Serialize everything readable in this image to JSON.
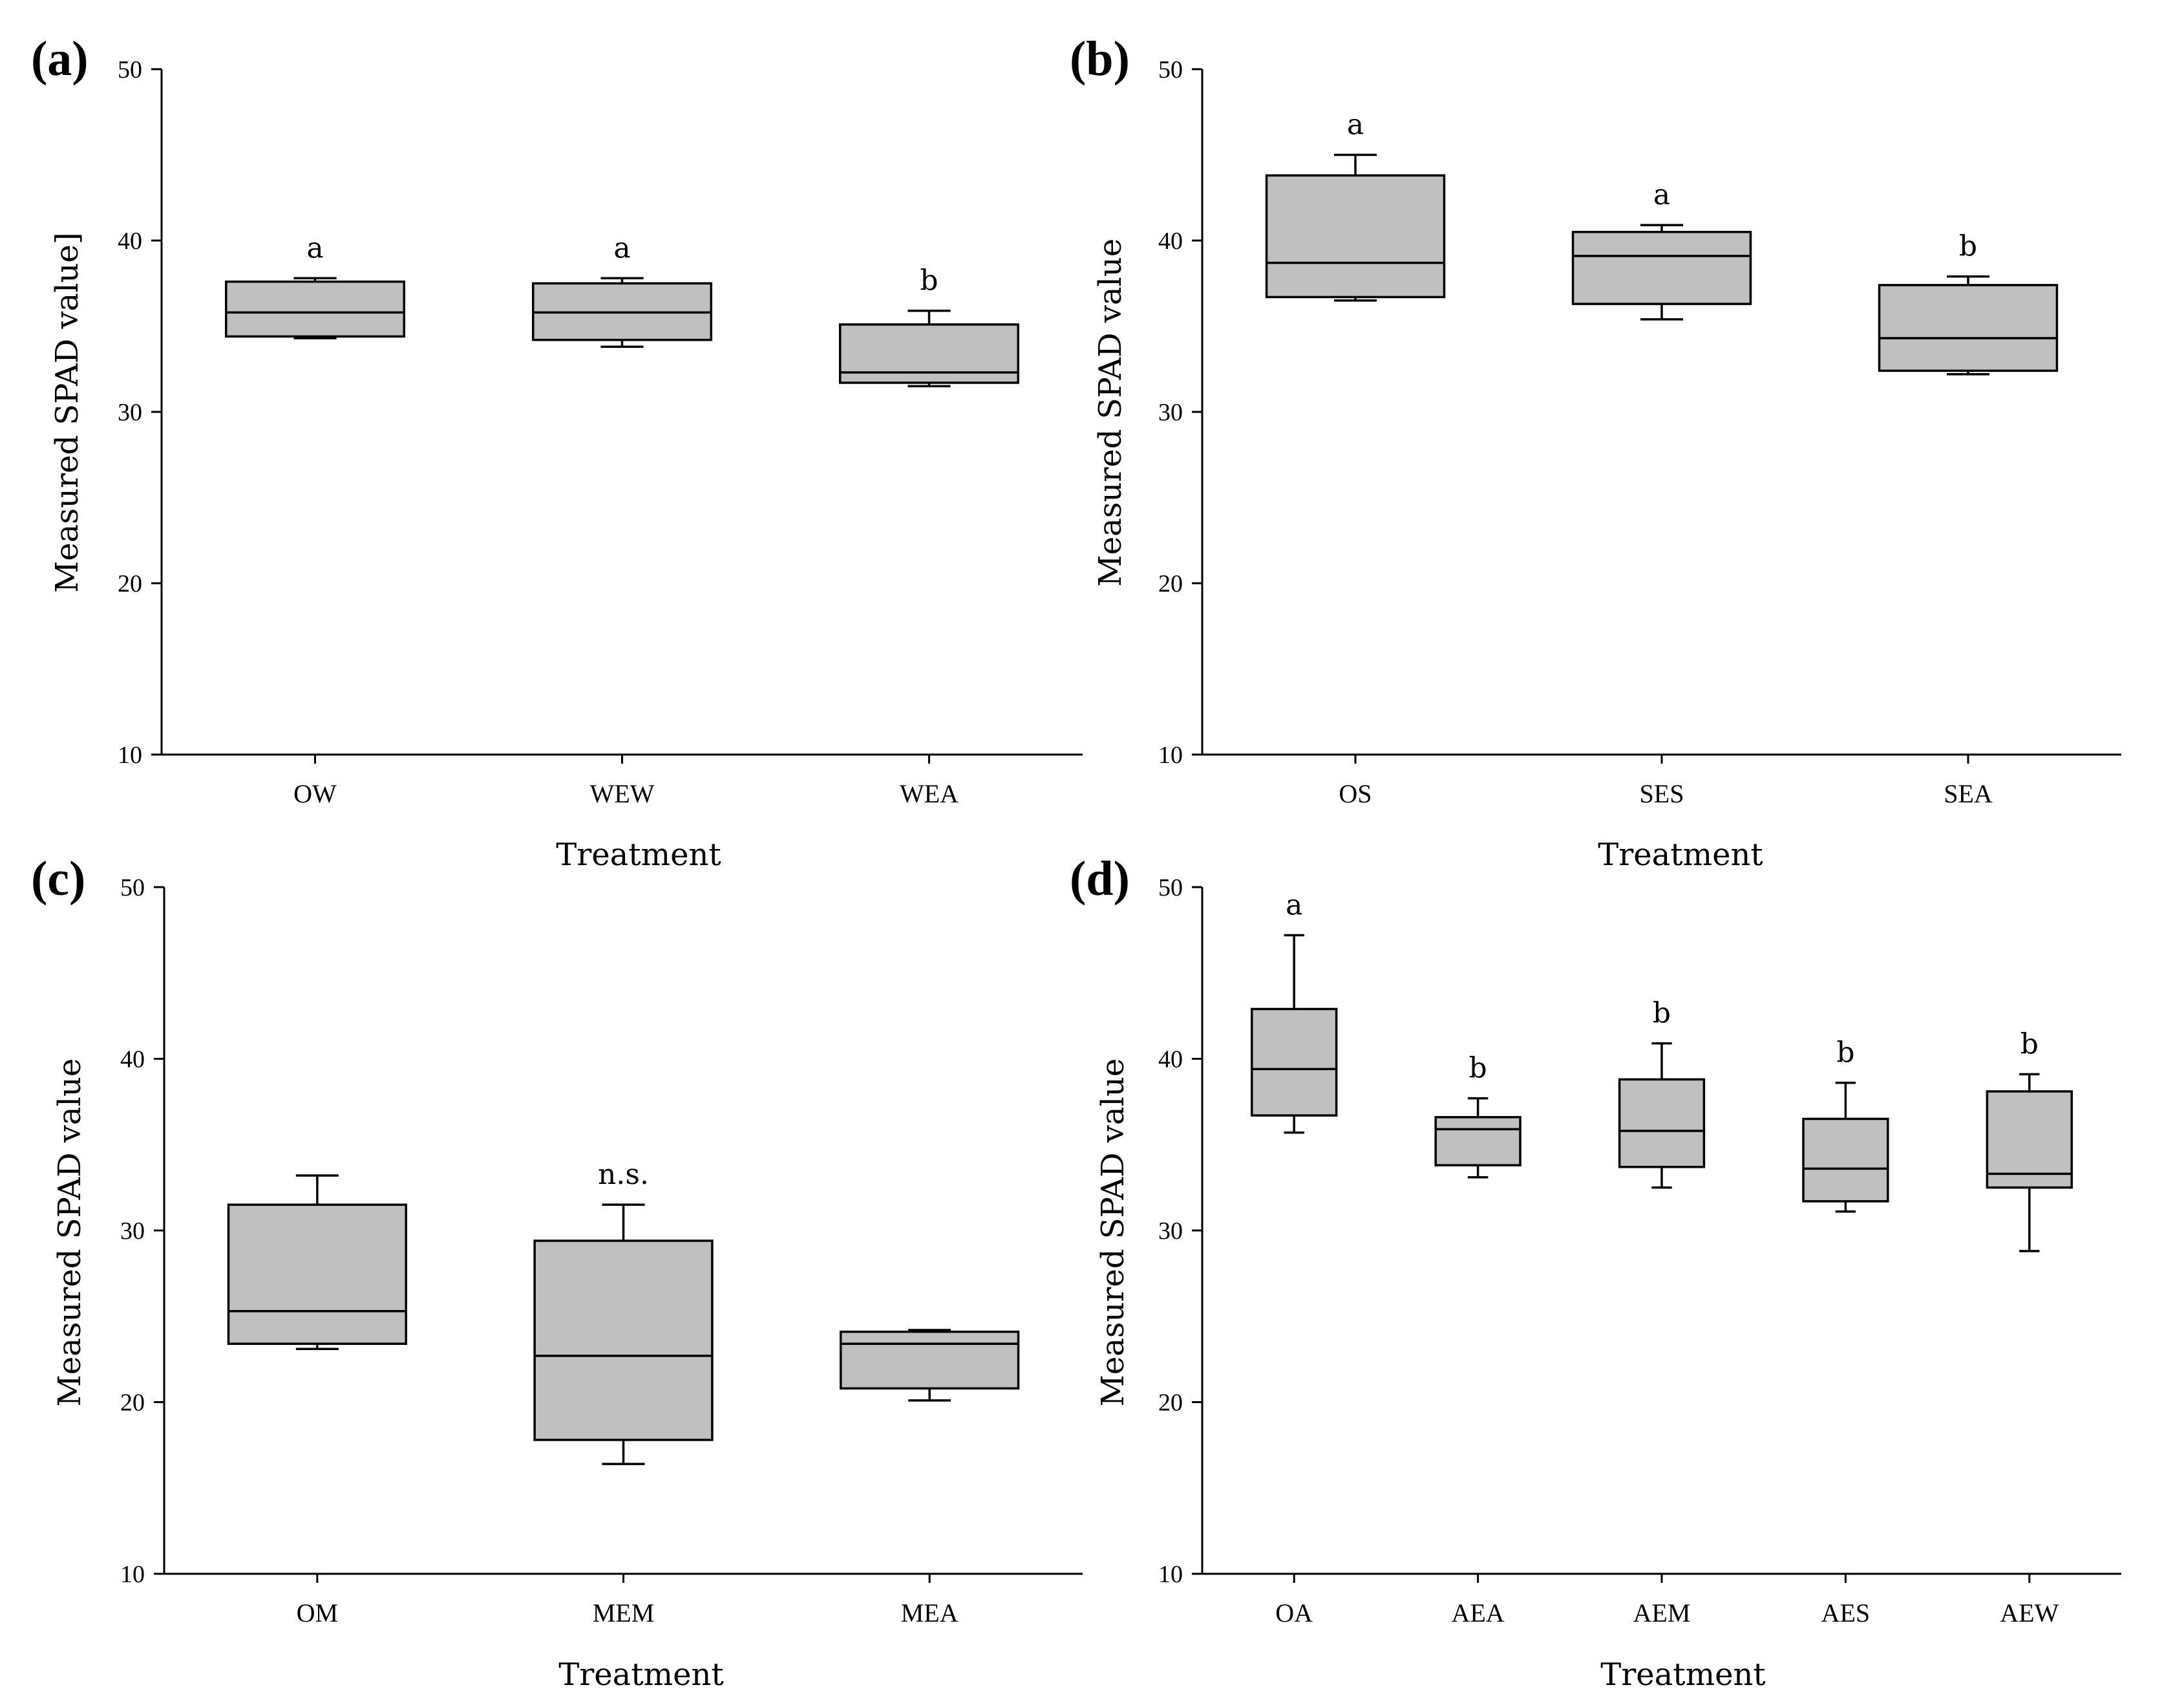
{
  "colors": {
    "box_fill": "#c0c0c0",
    "stroke": "#000000",
    "background": "#ffffff"
  },
  "chart_data": [
    {
      "type": "boxplot",
      "panel": "(a)",
      "xlabel": "Treatment",
      "ylabel": "Measured SPAD value]",
      "ylim": [
        10,
        50
      ],
      "yticks": [
        10,
        20,
        30,
        40,
        50
      ],
      "categories": [
        "OW",
        "WEW",
        "WEA"
      ],
      "boxes": [
        {
          "min": 34.3,
          "q1": 34.4,
          "median": 35.8,
          "q3": 37.6,
          "max": 37.8,
          "label": "a"
        },
        {
          "min": 33.8,
          "q1": 34.2,
          "median": 35.8,
          "q3": 37.5,
          "max": 37.8,
          "label": "a"
        },
        {
          "min": 31.5,
          "q1": 31.7,
          "median": 32.3,
          "q3": 35.1,
          "max": 35.9,
          "label": "b"
        }
      ]
    },
    {
      "type": "boxplot",
      "panel": "(b)",
      "xlabel": "Treatment",
      "ylabel": "Measured SPAD value",
      "ylim": [
        10,
        50
      ],
      "yticks": [
        10,
        20,
        30,
        40,
        50
      ],
      "categories": [
        "OS",
        "SES",
        "SEA"
      ],
      "boxes": [
        {
          "min": 36.5,
          "q1": 36.7,
          "median": 38.7,
          "q3": 43.8,
          "max": 45.0,
          "label": "a"
        },
        {
          "min": 35.4,
          "q1": 36.3,
          "median": 39.1,
          "q3": 40.5,
          "max": 40.9,
          "label": "a"
        },
        {
          "min": 32.2,
          "q1": 32.4,
          "median": 34.3,
          "q3": 37.4,
          "max": 37.9,
          "label": "b"
        }
      ]
    },
    {
      "type": "boxplot",
      "panel": "(c)",
      "xlabel": "Treatment",
      "ylabel": "Measured SPAD value",
      "ylim": [
        10,
        50
      ],
      "yticks": [
        10,
        20,
        30,
        40,
        50
      ],
      "categories": [
        "OM",
        "MEM",
        "MEA"
      ],
      "annotation": "n.s.",
      "boxes": [
        {
          "min": 23.1,
          "q1": 23.4,
          "median": 25.3,
          "q3": 31.5,
          "max": 33.2,
          "label": ""
        },
        {
          "min": 16.4,
          "q1": 17.8,
          "median": 22.7,
          "q3": 29.4,
          "max": 31.5,
          "label": "n.s."
        },
        {
          "min": 20.1,
          "q1": 20.8,
          "median": 23.4,
          "q3": 24.1,
          "max": 24.2,
          "label": ""
        }
      ]
    },
    {
      "type": "boxplot",
      "panel": "(d)",
      "xlabel": "Treatment",
      "ylabel": "Measured SPAD value",
      "ylim": [
        10,
        50
      ],
      "yticks": [
        10,
        20,
        30,
        40,
        50
      ],
      "categories": [
        "OA",
        "AEA",
        "AEM",
        "AES",
        "AEW"
      ],
      "boxes": [
        {
          "min": 35.7,
          "q1": 36.7,
          "median": 39.4,
          "q3": 42.9,
          "max": 47.2,
          "label": "a"
        },
        {
          "min": 33.1,
          "q1": 33.8,
          "median": 35.9,
          "q3": 36.6,
          "max": 37.7,
          "label": "b"
        },
        {
          "min": 32.5,
          "q1": 33.7,
          "median": 35.8,
          "q3": 38.8,
          "max": 40.9,
          "label": "b"
        },
        {
          "min": 31.1,
          "q1": 31.7,
          "median": 33.6,
          "q3": 36.5,
          "max": 38.6,
          "label": "b"
        },
        {
          "min": 28.8,
          "q1": 32.5,
          "median": 33.3,
          "q3": 38.1,
          "max": 39.1,
          "label": "b"
        }
      ]
    }
  ]
}
